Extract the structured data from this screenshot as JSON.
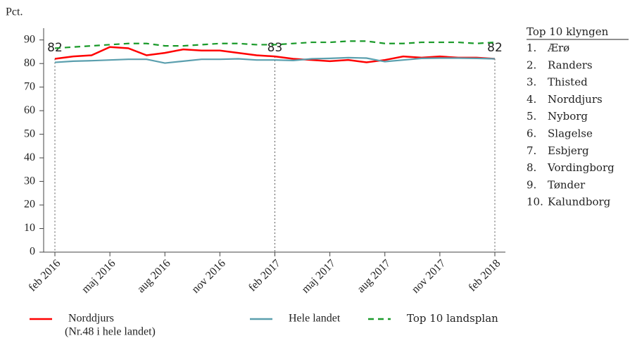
{
  "chart_data": {
    "type": "line",
    "y_axis_label": "Pct.",
    "categories": [
      "feb 2016",
      null,
      null,
      "maj 2016",
      null,
      null,
      "aug 2016",
      null,
      null,
      "nov 2016",
      null,
      null,
      "feb 2017",
      null,
      null,
      "maj 2017",
      null,
      null,
      "aug 2017",
      null,
      null,
      "nov 2017",
      null,
      null,
      "feb 2018"
    ],
    "ylim": [
      0,
      95
    ],
    "yticks": [
      0,
      10,
      20,
      30,
      40,
      50,
      60,
      70,
      80,
      90
    ],
    "grid": false,
    "series": [
      {
        "name": "Norddjurs",
        "note": "(Nr.48 i hele landet)",
        "color": "#ff0000",
        "dash": false,
        "values": [
          82,
          83,
          83.5,
          87,
          86.5,
          83.5,
          84.5,
          86,
          85.5,
          85.5,
          84.5,
          83.5,
          83,
          82,
          81.5,
          81,
          81.5,
          80.5,
          81.5,
          83,
          82.5,
          83,
          82.5,
          82.5,
          82
        ],
        "value_labels": [
          "82",
          null,
          null,
          null,
          null,
          null,
          null,
          null,
          null,
          null,
          null,
          null,
          "83",
          null,
          null,
          null,
          null,
          null,
          null,
          null,
          null,
          null,
          null,
          null,
          "82"
        ]
      },
      {
        "name": "Hele landet",
        "color": "#5b9fae",
        "dash": false,
        "values": [
          80.5,
          81,
          81.2,
          81.5,
          81.8,
          81.8,
          80.2,
          81,
          81.8,
          81.8,
          82,
          81.5,
          81.5,
          81.3,
          82,
          82.2,
          82.5,
          82.3,
          80.8,
          81.5,
          82.2,
          82.3,
          82.3,
          82.2,
          82
        ]
      },
      {
        "name": "Top 10 landsplan",
        "color": "#1a9a2a",
        "dash": true,
        "values": [
          86.5,
          87,
          87.5,
          88,
          88.5,
          88.5,
          87.5,
          87.5,
          88,
          88.5,
          88.5,
          88,
          88,
          88.5,
          89,
          89,
          89.5,
          89.5,
          88.5,
          88.5,
          89,
          89,
          89,
          88.5,
          89
        ]
      }
    ]
  },
  "side_panel": {
    "title": "Top 10 klyngen",
    "items": [
      {
        "rank": "1.",
        "name": "Ærø"
      },
      {
        "rank": "2.",
        "name": "Randers"
      },
      {
        "rank": "3.",
        "name": "Thisted"
      },
      {
        "rank": "4.",
        "name": "Norddjurs"
      },
      {
        "rank": "5.",
        "name": "Nyborg"
      },
      {
        "rank": "6.",
        "name": "Slagelse"
      },
      {
        "rank": "7.",
        "name": "Esbjerg"
      },
      {
        "rank": "8.",
        "name": "Vordingborg"
      },
      {
        "rank": "9.",
        "name": "Tønder"
      },
      {
        "rank": "10.",
        "name": "Kalundborg"
      }
    ]
  }
}
